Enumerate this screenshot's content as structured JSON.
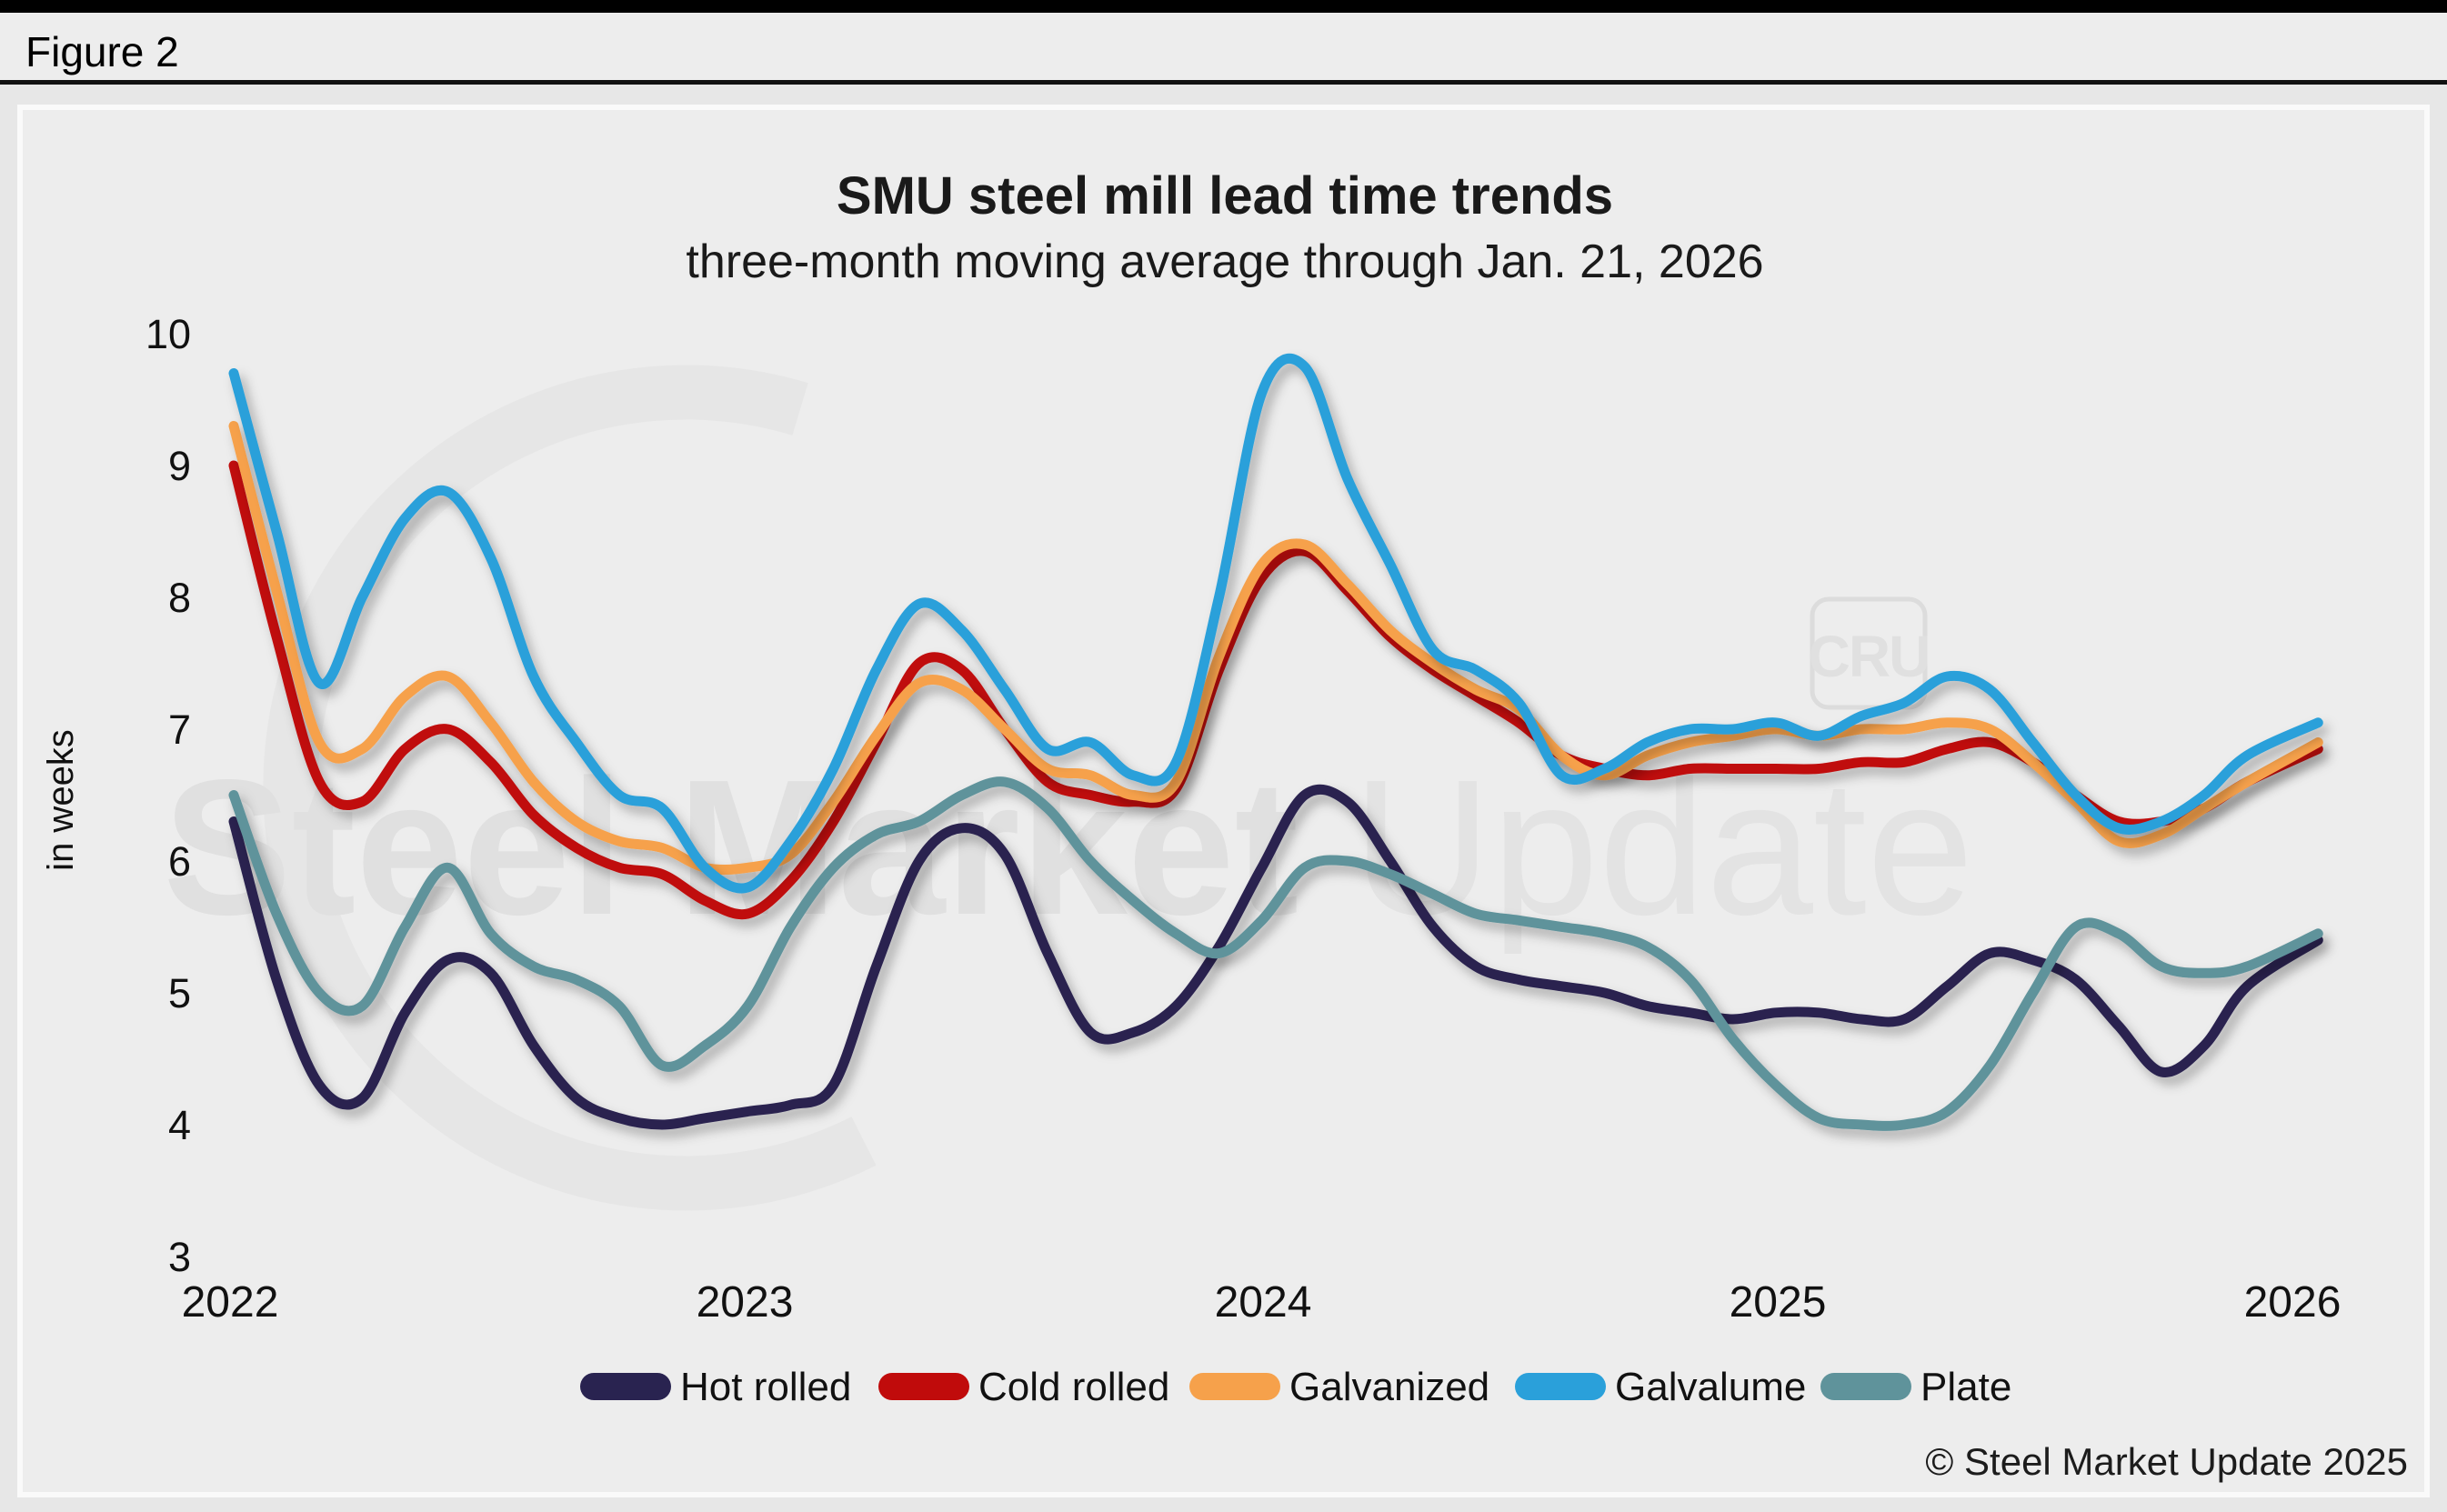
{
  "page": {
    "figure_label": "Figure 2",
    "copyright": "© Steel Market Update 2025"
  },
  "watermark": {
    "text_bold": "Steel Market",
    "text_light": " Update",
    "logo": "CRU"
  },
  "chart_data": {
    "type": "line",
    "title": "SMU steel mill lead time trends",
    "subtitle": "three-month moving average through Jan. 21, 2026",
    "ylabel": "in weeks",
    "ylim": [
      3,
      10
    ],
    "yticks": [
      "10",
      "9",
      "8",
      "7",
      "6",
      "5",
      "4",
      "3"
    ],
    "xticks": [
      "2022",
      "2023",
      "2024",
      "2025",
      "2026"
    ],
    "x_description": "monthly values from Jan 2022 through Jan 21, 2026",
    "grid": false,
    "legend_position": "bottom",
    "background": "#ededed",
    "series": [
      {
        "name": "Hot rolled",
        "color": "#292350",
        "values": [
          6.3,
          5.1,
          4.3,
          4.2,
          4.85,
          5.25,
          5.15,
          4.6,
          4.2,
          4.05,
          4.0,
          4.05,
          4.1,
          4.15,
          4.3,
          5.2,
          6.0,
          6.25,
          6.05,
          5.3,
          4.7,
          4.7,
          4.9,
          5.35,
          5.95,
          6.5,
          6.45,
          6.0,
          5.5,
          5.2,
          5.1,
          5.05,
          5.0,
          4.9,
          4.85,
          4.8,
          4.85,
          4.85,
          4.8,
          4.8,
          5.05,
          5.3,
          5.25,
          5.1,
          4.75,
          4.4,
          4.6,
          5.05,
          5.4
        ]
      },
      {
        "name": "Cold rolled",
        "color": "#c00b0b",
        "values": [
          9.0,
          7.7,
          6.6,
          6.45,
          6.85,
          7.0,
          6.75,
          6.35,
          6.1,
          5.95,
          5.9,
          5.7,
          5.6,
          5.85,
          6.3,
          6.9,
          7.5,
          7.45,
          7.0,
          6.6,
          6.5,
          6.45,
          6.55,
          7.45,
          8.15,
          8.35,
          8.05,
          7.7,
          7.45,
          7.25,
          7.05,
          6.8,
          6.7,
          6.65,
          6.7,
          6.7,
          6.7,
          6.7,
          6.75,
          6.75,
          6.85,
          6.9,
          6.75,
          6.5,
          6.3,
          6.3,
          6.4,
          6.6,
          6.85
        ]
      },
      {
        "name": "Galvanized",
        "color": "#f6a14b",
        "values": [
          9.3,
          8.05,
          6.9,
          6.85,
          7.25,
          7.4,
          7.05,
          6.6,
          6.3,
          6.15,
          6.1,
          5.95,
          5.95,
          6.05,
          6.45,
          6.95,
          7.35,
          7.3,
          7.0,
          6.7,
          6.65,
          6.5,
          6.6,
          7.55,
          8.25,
          8.4,
          8.1,
          7.75,
          7.5,
          7.3,
          7.15,
          6.8,
          6.65,
          6.8,
          6.9,
          6.95,
          7.0,
          6.95,
          7.0,
          7.0,
          7.05,
          7.0,
          6.75,
          6.45,
          6.15,
          6.2,
          6.4,
          6.6,
          6.9
        ]
      },
      {
        "name": "Galvalume",
        "color": "#2aa0da",
        "values": [
          9.7,
          8.5,
          7.35,
          8.0,
          8.6,
          8.8,
          8.3,
          7.4,
          6.9,
          6.5,
          6.4,
          5.95,
          5.8,
          6.15,
          6.7,
          7.45,
          7.95,
          7.75,
          7.3,
          6.85,
          6.9,
          6.65,
          6.75,
          8.0,
          9.55,
          9.75,
          8.9,
          8.25,
          7.6,
          7.45,
          7.2,
          6.65,
          6.7,
          6.9,
          7.0,
          7.0,
          7.05,
          6.95,
          7.1,
          7.2,
          7.4,
          7.3,
          6.9,
          6.5,
          6.25,
          6.3,
          6.5,
          6.8,
          7.05
        ]
      },
      {
        "name": "Plate",
        "color": "#5f939b",
        "values": [
          6.5,
          5.6,
          5.0,
          4.9,
          5.5,
          5.95,
          5.45,
          5.2,
          5.1,
          4.9,
          4.45,
          4.6,
          4.9,
          5.5,
          5.95,
          6.2,
          6.3,
          6.5,
          6.6,
          6.4,
          6.0,
          5.7,
          5.45,
          5.3,
          5.55,
          5.95,
          6.0,
          5.9,
          5.75,
          5.6,
          5.55,
          5.5,
          5.45,
          5.35,
          5.1,
          4.65,
          4.3,
          4.05,
          4.0,
          4.0,
          4.1,
          4.45,
          5.0,
          5.5,
          5.45,
          5.2,
          5.15,
          5.2,
          5.45
        ]
      }
    ]
  }
}
